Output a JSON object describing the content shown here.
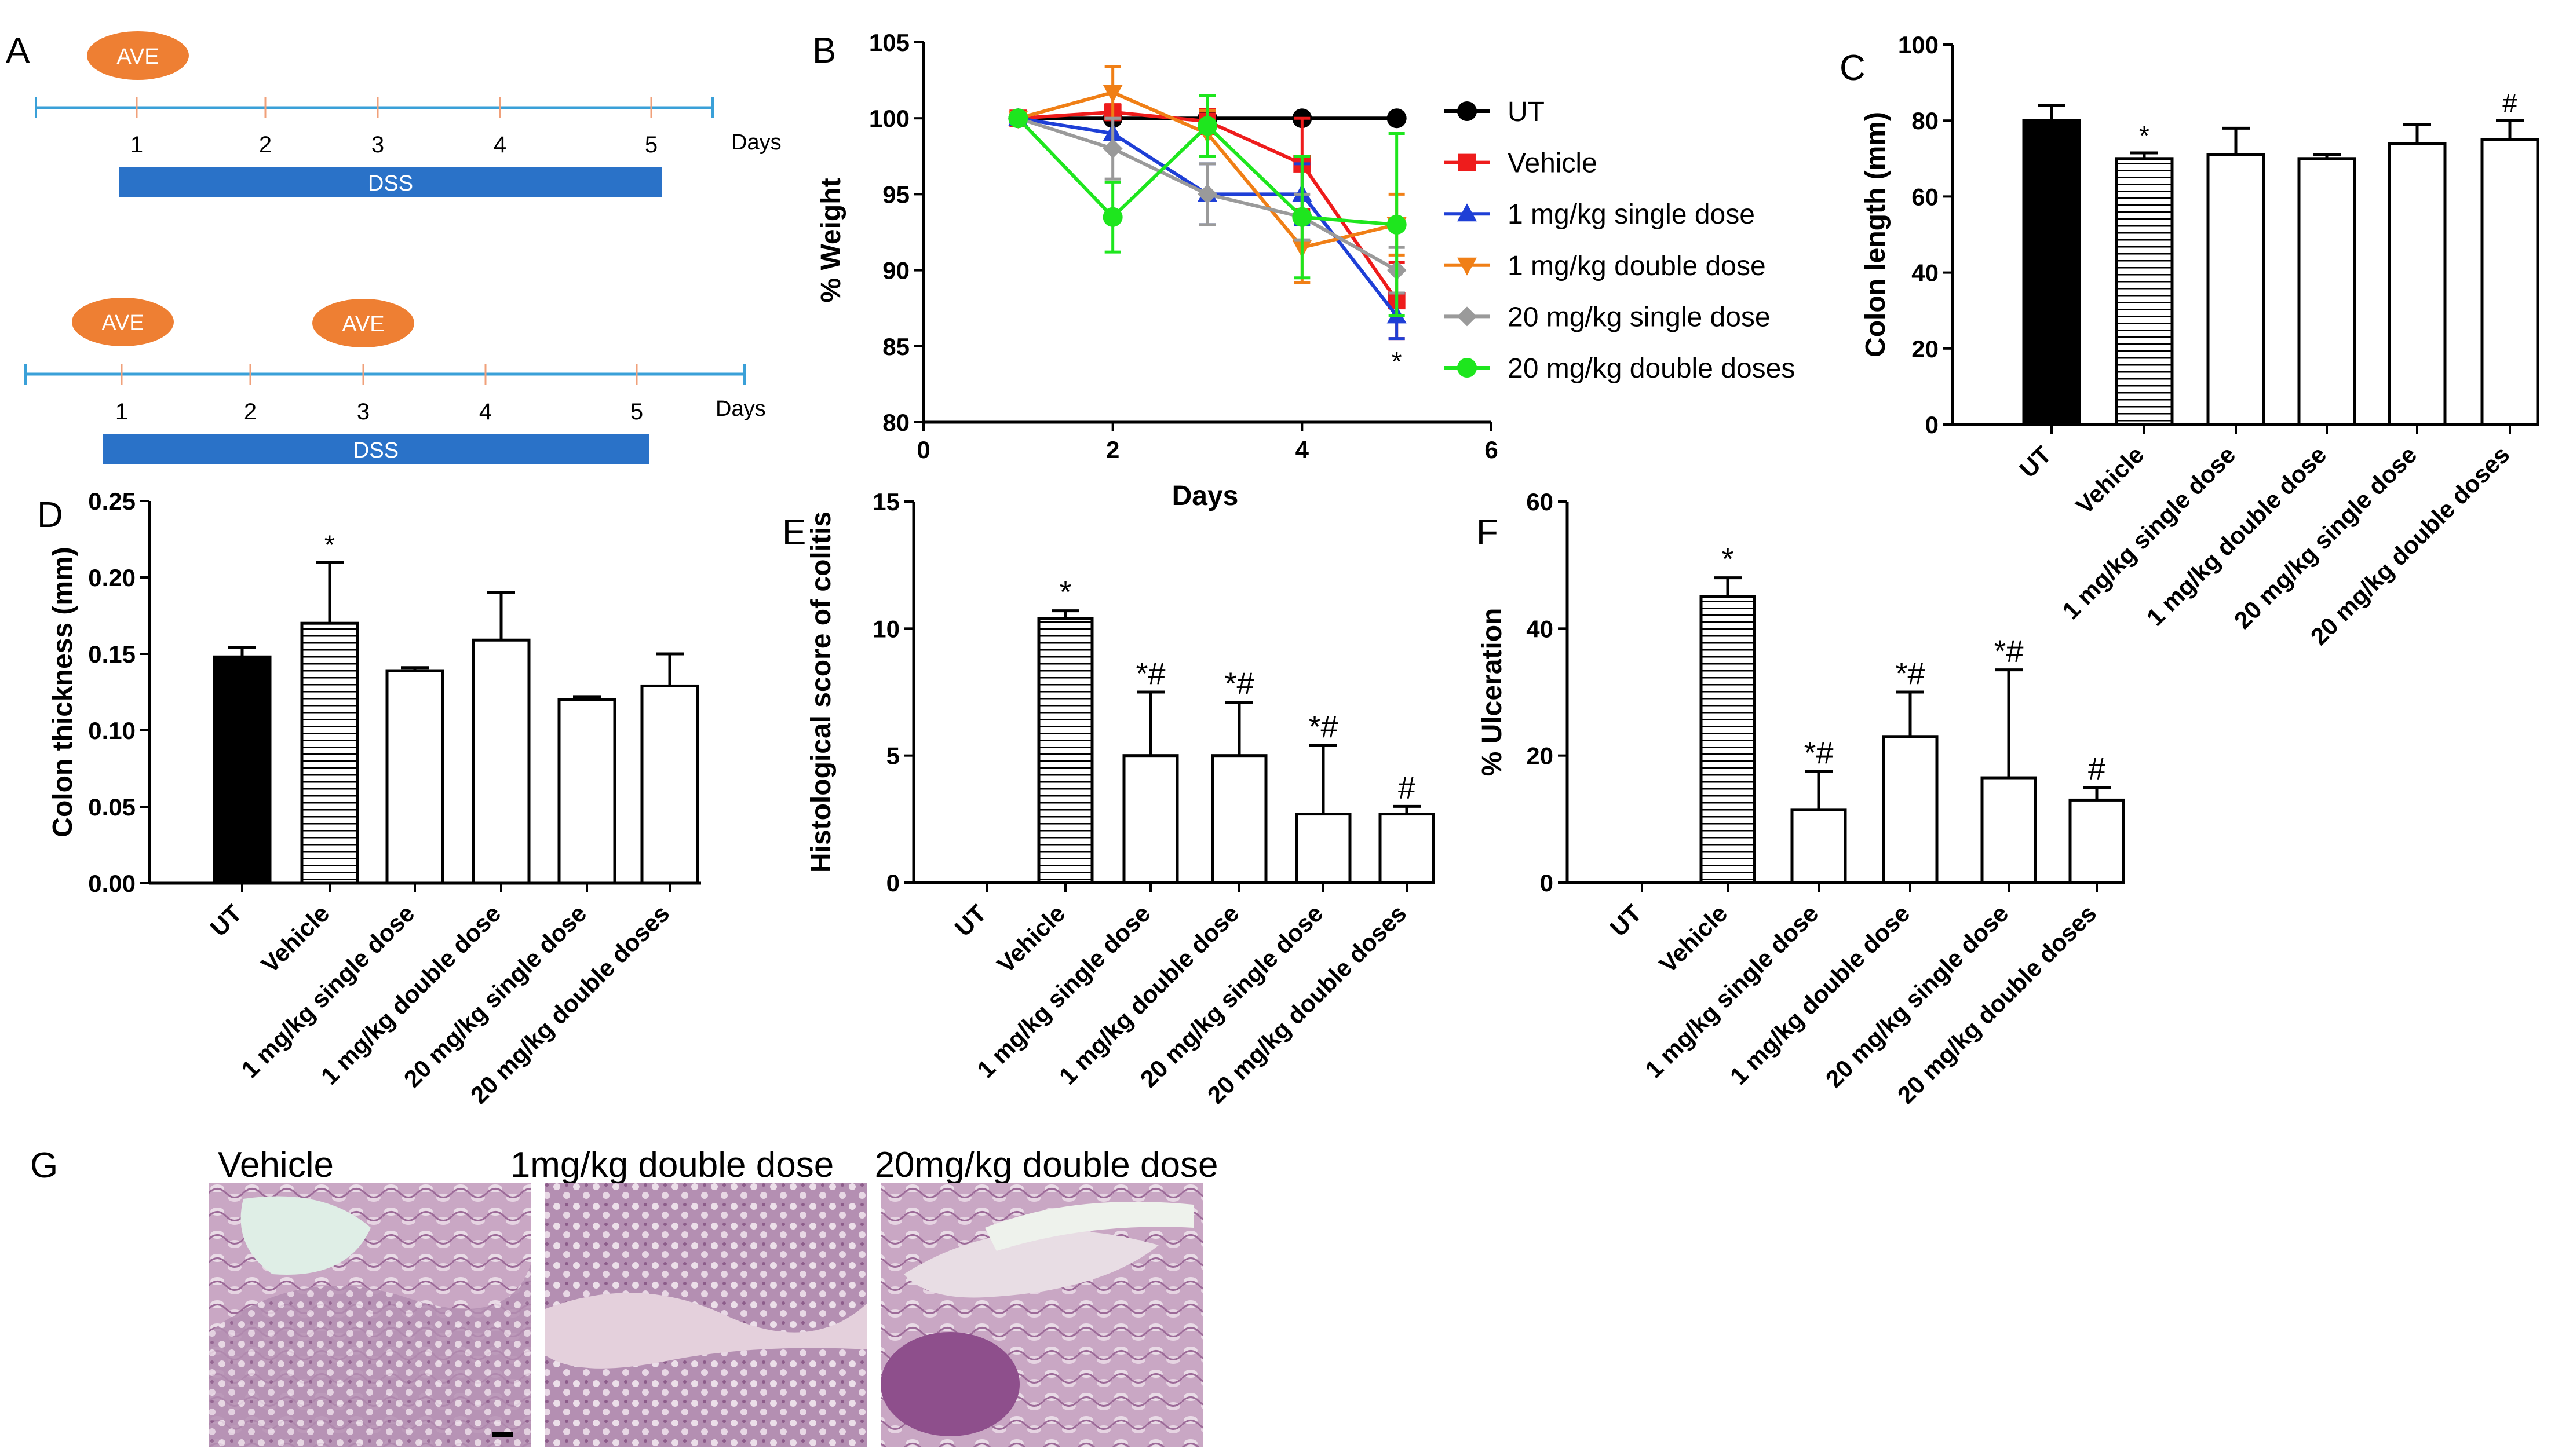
{
  "colors": {
    "ut": "#000000",
    "vehicle": "#ee1c1c",
    "s1": "#1e3fd6",
    "d1": "#f07f16",
    "s20": "#9a9a9a",
    "d20": "#1ee61e",
    "ave": "#ee7f33",
    "dss": "#2a72c8",
    "timeline": "#3aa0d8"
  },
  "panel_a": {
    "label": "A",
    "marker": "AVE",
    "bar_label": "DSS",
    "days_label": "Days",
    "ticks": [
      "1",
      "2",
      "3",
      "4",
      "5"
    ]
  },
  "chart_data": [
    {
      "id": "B",
      "type": "line",
      "label": "B",
      "title": "",
      "xlabel": "Days",
      "ylabel": "% Weight",
      "xlim": [
        0,
        6
      ],
      "ylim": [
        80,
        105
      ],
      "xticks": [
        "0",
        "2",
        "4",
        "6"
      ],
      "yticks": [
        "80",
        "85",
        "90",
        "95",
        "100",
        "105"
      ],
      "x": [
        1,
        2,
        3,
        4,
        5
      ],
      "series": [
        {
          "name": "UT",
          "color": "#000000",
          "marker": "circle",
          "values": [
            100,
            100,
            100,
            100,
            100
          ],
          "err": [
            0,
            0,
            0,
            0,
            0
          ]
        },
        {
          "name": "Vehicle",
          "color": "#ee1c1c",
          "marker": "square",
          "values": [
            100,
            100.4,
            99.8,
            97,
            88
          ],
          "err": [
            0,
            0.5,
            0.8,
            3,
            2.5
          ]
        },
        {
          "name": "1 mg/kg single dose",
          "color": "#1e3fd6",
          "marker": "triangle",
          "values": [
            100,
            99,
            95,
            95,
            87
          ],
          "err": [
            0,
            1,
            2,
            2,
            1.5
          ]
        },
        {
          "name": "1 mg/kg double dose",
          "color": "#f07f16",
          "marker": "triangle-down",
          "values": [
            100,
            101.7,
            99,
            91.5,
            93
          ],
          "err": [
            0,
            1.7,
            1.5,
            2.3,
            2
          ]
        },
        {
          "name": "20 mg/kg single dose",
          "color": "#9a9a9a",
          "marker": "diamond",
          "values": [
            100,
            98,
            95,
            93.5,
            90
          ],
          "err": [
            0,
            2,
            2,
            1.5,
            1.5
          ]
        },
        {
          "name": "20 mg/kg double doses",
          "color": "#1ee61e",
          "marker": "circle",
          "values": [
            100,
            93.5,
            99.5,
            93.5,
            93
          ],
          "err": [
            0,
            2.3,
            2,
            4,
            6
          ]
        }
      ],
      "annotations": [
        {
          "text": "*",
          "x": 5
        }
      ]
    },
    {
      "id": "C",
      "type": "bar",
      "label": "C",
      "ylabel": "Colon length (mm)",
      "ylim": [
        0,
        100
      ],
      "yticks": [
        "0",
        "20",
        "40",
        "60",
        "80",
        "100"
      ],
      "categories": [
        "UT",
        "Vehicle",
        "1 mg/kg single dose",
        "1 mg/kg double  dose",
        "20 mg/kg single dose",
        "20 mg/kg double doses"
      ],
      "values": [
        80,
        70,
        71,
        70,
        74,
        75
      ],
      "errors": [
        4,
        1.5,
        7,
        1,
        5,
        5
      ],
      "annotations": [
        "",
        "*",
        "",
        "",
        "",
        "#"
      ],
      "fills": [
        "solid",
        "hatch",
        "empty",
        "empty",
        "empty",
        "empty"
      ]
    },
    {
      "id": "D",
      "type": "bar",
      "label": "D",
      "ylabel": "Colon thickness (mm)",
      "ylim": [
        0,
        0.25
      ],
      "yticks": [
        "0.00",
        "0.05",
        "0.10",
        "0.15",
        "0.20",
        "0.25"
      ],
      "categories": [
        "UT",
        "Vehicle",
        "1 mg/kg single dose",
        "1 mg/kg double  dose",
        "20 mg/kg single dose",
        "20 mg/kg double doses"
      ],
      "values": [
        0.148,
        0.17,
        0.139,
        0.159,
        0.12,
        0.129
      ],
      "errors": [
        0.006,
        0.04,
        0.002,
        0.031,
        0.002,
        0.021
      ],
      "annotations": [
        "",
        "*",
        "",
        "",
        "",
        ""
      ],
      "fills": [
        "solid",
        "hatch",
        "empty",
        "empty",
        "empty",
        "empty"
      ]
    },
    {
      "id": "E",
      "type": "bar",
      "label": "E",
      "ylabel": "Histological score of colitis",
      "ylim": [
        0,
        15
      ],
      "yticks": [
        "0",
        "5",
        "10",
        "15"
      ],
      "categories": [
        "UT",
        "Vehicle",
        "1 mg/kg single dose",
        "1 mg/kg double dose",
        "20 mg/kg single dose",
        "20 mg/kg double doses"
      ],
      "values": [
        0,
        10.4,
        5,
        5,
        2.7,
        2.7
      ],
      "errors": [
        0,
        0.3,
        2.5,
        2.1,
        2.7,
        0.3
      ],
      "annotations": [
        "",
        "*",
        "*#",
        "*#",
        "*#",
        "#"
      ],
      "fills": [
        "empty",
        "hatch",
        "empty",
        "empty",
        "empty",
        "empty"
      ]
    },
    {
      "id": "F",
      "type": "bar",
      "label": "F",
      "ylabel": "% Ulceration",
      "ylim": [
        0,
        60
      ],
      "yticks": [
        "0",
        "20",
        "40",
        "60"
      ],
      "categories": [
        "UT",
        "Vehicle",
        "1 mg/kg single dose",
        "1 mg/kg double dose",
        "20 mg/kg single dose",
        "20 mg/kg double doses"
      ],
      "values": [
        0,
        45,
        11.5,
        23,
        16.5,
        13
      ],
      "errors": [
        0,
        3,
        6,
        7,
        17,
        2
      ],
      "annotations": [
        "",
        "*",
        "*#",
        "*#",
        "*#",
        "#"
      ],
      "fills": [
        "empty",
        "hatch",
        "empty",
        "empty",
        "empty",
        "empty"
      ]
    }
  ],
  "panel_g": {
    "label": "G",
    "captions": [
      "Vehicle",
      "1mg/kg double dose",
      "20mg/kg double dose"
    ]
  }
}
